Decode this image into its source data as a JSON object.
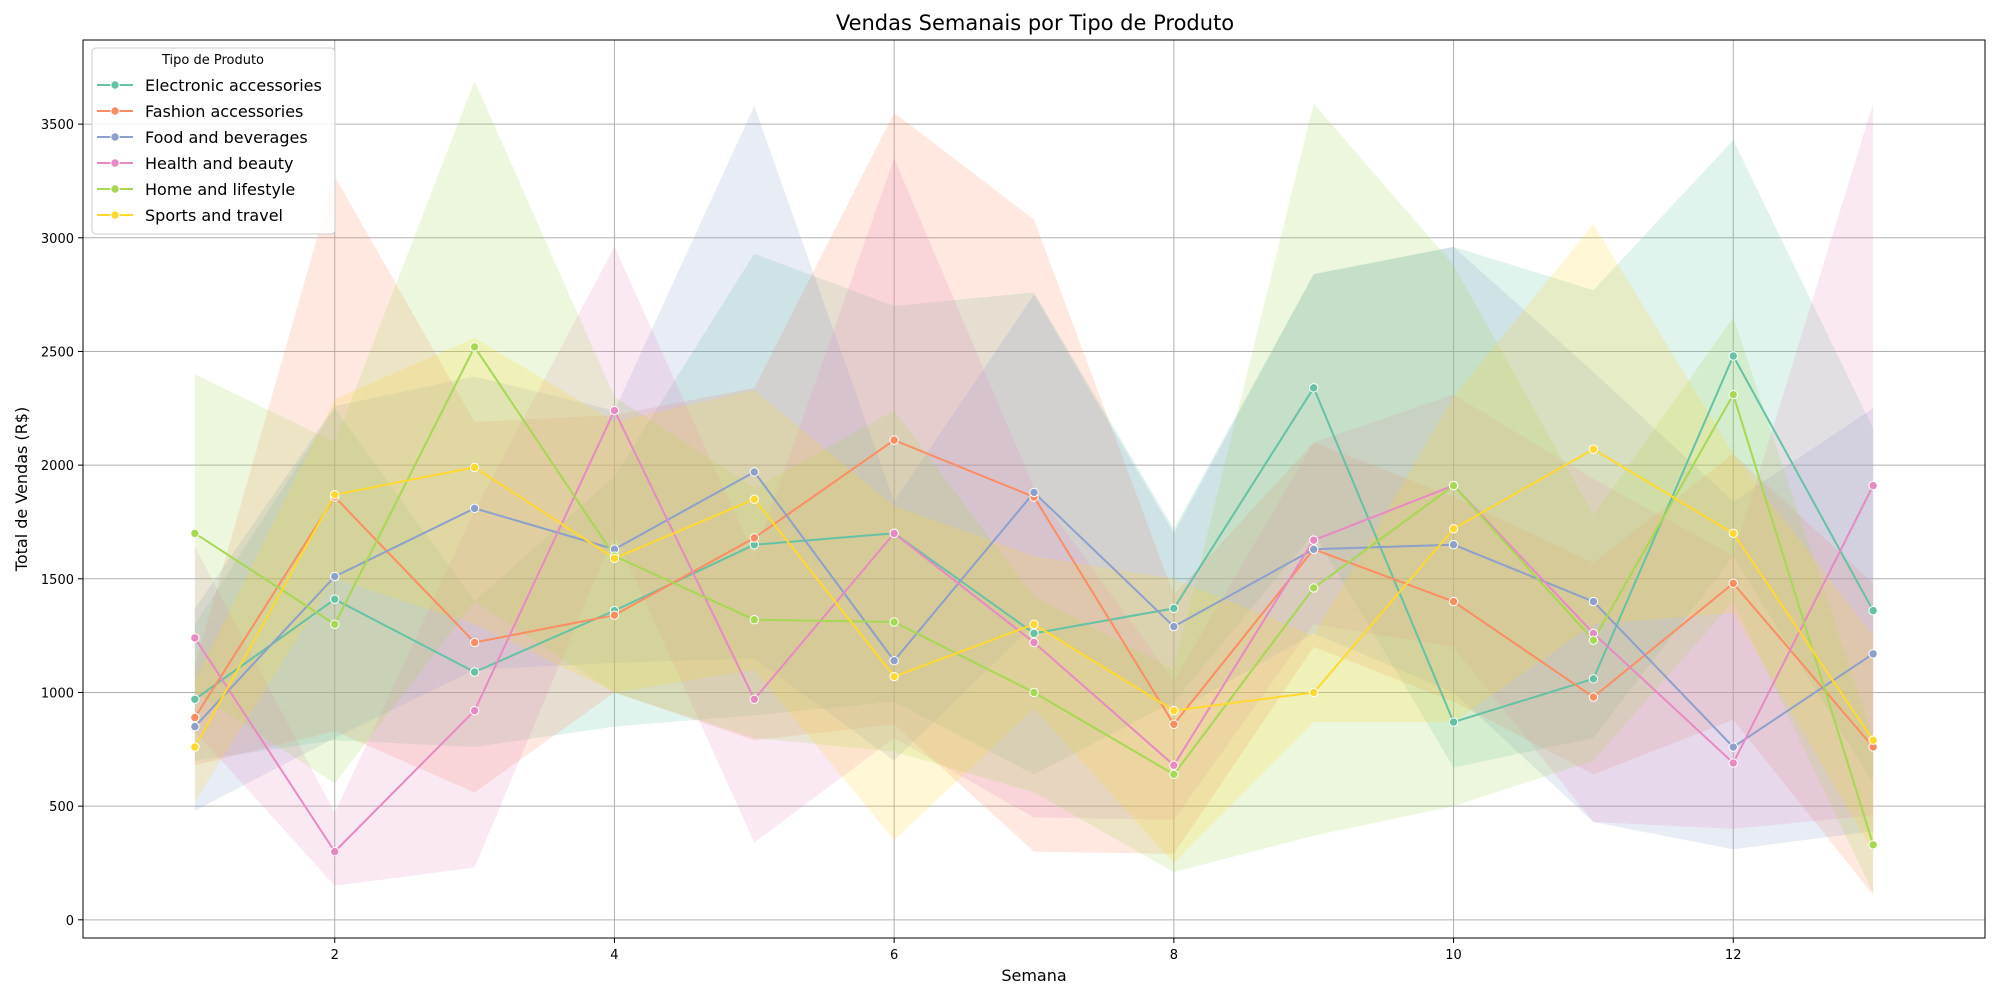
{
  "chart_data": {
    "type": "line",
    "title": "Vendas Semanais por Tipo de Produto",
    "xlabel": "Semana",
    "ylabel": "Total de Vendas (R$)",
    "xlim": [
      0.2,
      13.8
    ],
    "ylim": [
      -80,
      3870
    ],
    "xticks": [
      2,
      4,
      6,
      8,
      10,
      12
    ],
    "yticks": [
      0,
      500,
      1000,
      1500,
      2000,
      2500,
      3000,
      3500
    ],
    "grid": true,
    "legend": {
      "title": "Tipo de Produto",
      "position": "top-left"
    },
    "x": [
      1,
      2,
      3,
      4,
      5,
      6,
      7,
      8,
      9,
      10,
      11,
      12,
      13
    ],
    "series": [
      {
        "name": "Electronic accessories",
        "color": "#66c2a5",
        "values": [
          970,
          1410,
          1090,
          1360,
          1650,
          1700,
          1260,
          1370,
          2340,
          870,
          1060,
          2480,
          1360
        ],
        "lower": [
          700,
          790,
          760,
          850,
          900,
          960,
          640,
          960,
          1700,
          670,
          800,
          1600,
          600
        ],
        "upper": [
          1300,
          2250,
          1400,
          1950,
          2930,
          2700,
          2760,
          1720,
          2840,
          2960,
          2770,
          3430,
          2160
        ]
      },
      {
        "name": "Fashion accessories",
        "color": "#fc8d62",
        "values": [
          890,
          1860,
          1220,
          1340,
          1680,
          2110,
          1860,
          860,
          1630,
          1400,
          980,
          1480,
          760
        ],
        "lower": [
          680,
          830,
          560,
          1000,
          790,
          860,
          300,
          290,
          1200,
          960,
          640,
          880,
          110
        ],
        "upper": [
          1120,
          3270,
          2190,
          2220,
          2340,
          3550,
          3080,
          1430,
          2100,
          1860,
          1570,
          2050,
          1480
        ]
      },
      {
        "name": "Food and beverages",
        "color": "#8da0cb",
        "values": [
          850,
          1510,
          1810,
          1630,
          1970,
          1140,
          1880,
          1290,
          1630,
          1650,
          1400,
          760,
          1170
        ],
        "lower": [
          480,
          800,
          1100,
          1130,
          1150,
          700,
          1300,
          910,
          1260,
          1000,
          430,
          310,
          390
        ],
        "upper": [
          1370,
          2260,
          2390,
          2240,
          3580,
          1840,
          2750,
          1700,
          2840,
          2960,
          2410,
          1840,
          2250
        ]
      },
      {
        "name": "Health and beauty",
        "color": "#e78ac3",
        "values": [
          1240,
          300,
          920,
          2240,
          970,
          1700,
          1220,
          680,
          1670,
          1910,
          1260,
          690,
          1910
        ],
        "lower": [
          830,
          150,
          230,
          1700,
          340,
          800,
          450,
          440,
          1300,
          1200,
          430,
          400,
          460
        ],
        "upper": [
          1640,
          470,
          1800,
          2960,
          1600,
          3350,
          1900,
          1050,
          2100,
          2310,
          1940,
          1600,
          3590
        ]
      },
      {
        "name": "Home and lifestyle",
        "color": "#a6d854",
        "values": [
          1700,
          1300,
          2520,
          1600,
          1320,
          1310,
          1000,
          640,
          1460,
          1910,
          1230,
          2310,
          330
        ],
        "lower": [
          1000,
          600,
          1400,
          1000,
          800,
          740,
          560,
          210,
          370,
          500,
          700,
          1400,
          120
        ],
        "upper": [
          2400,
          2100,
          3690,
          2300,
          1900,
          2240,
          1420,
          1100,
          3590,
          2880,
          1780,
          2650,
          800
        ]
      },
      {
        "name": "Sports and travel",
        "color": "#ffd92f",
        "values": [
          760,
          1870,
          1990,
          1590,
          1850,
          1070,
          1300,
          920,
          1000,
          1720,
          2070,
          1700,
          790
        ],
        "lower": [
          520,
          1500,
          1300,
          1000,
          1100,
          350,
          930,
          250,
          870,
          870,
          1300,
          1350,
          300
        ],
        "upper": [
          1050,
          2290,
          2560,
          2190,
          2330,
          1820,
          1600,
          1500,
          1250,
          2300,
          3060,
          2050,
          1250
        ]
      }
    ]
  }
}
